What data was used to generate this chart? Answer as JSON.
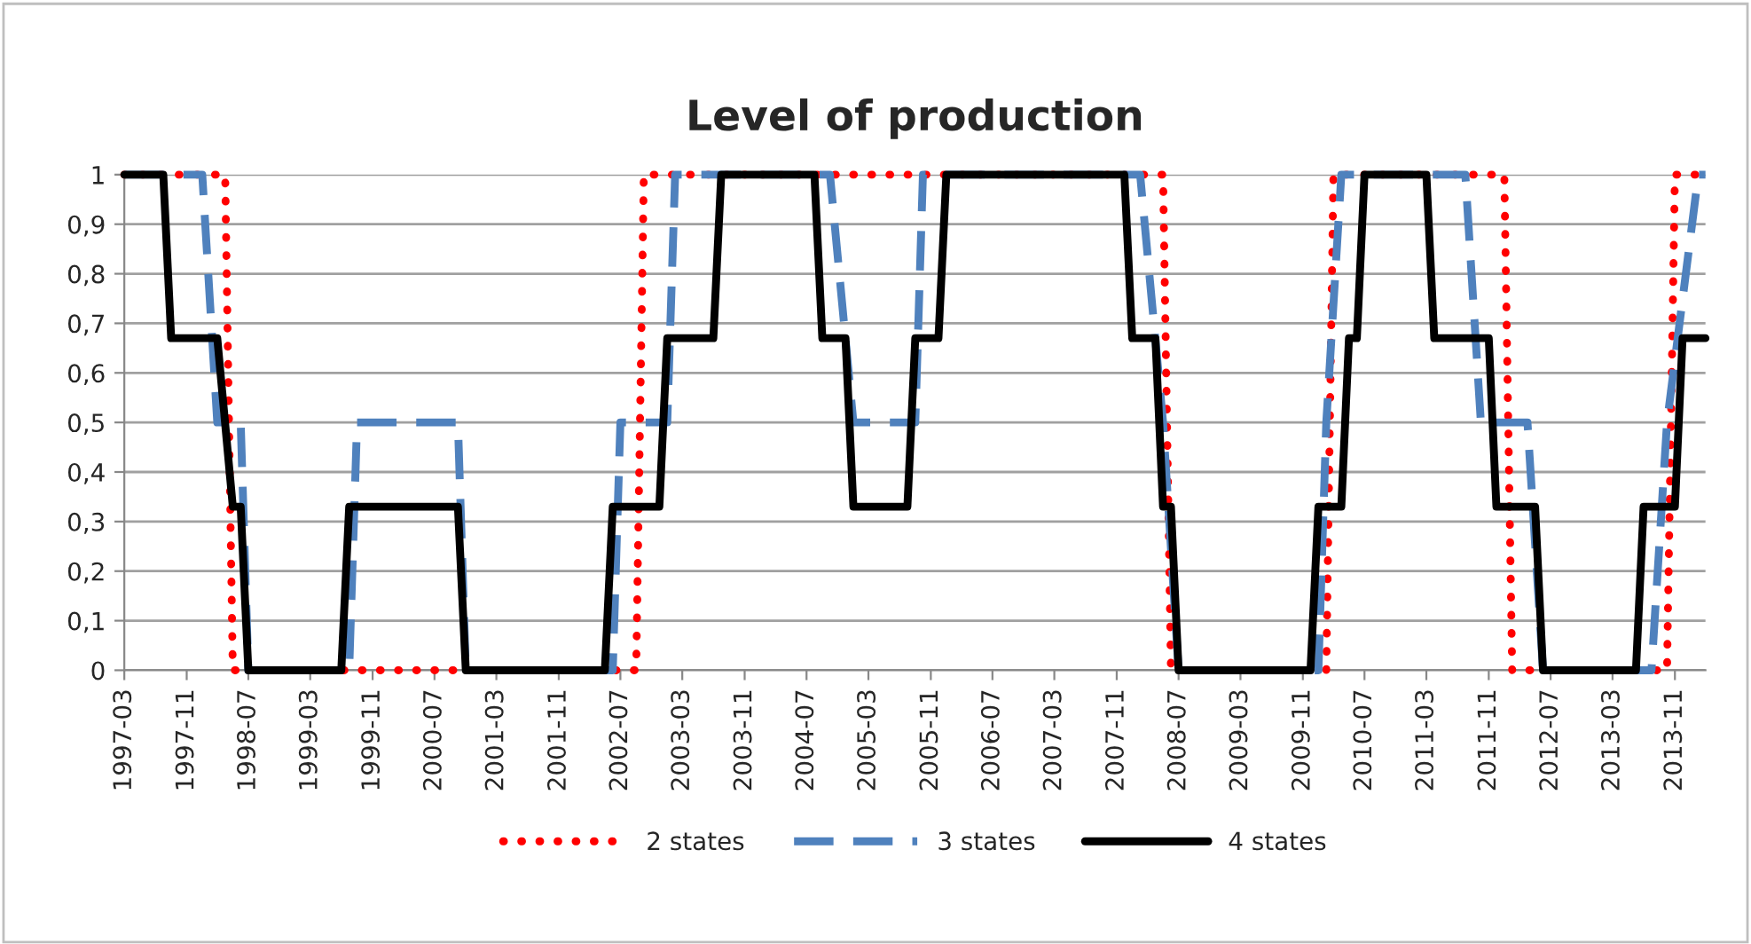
{
  "chart_data": {
    "type": "line",
    "title": "Level of production",
    "xlim": [
      "1997-03",
      "2014-03"
    ],
    "xticks": [
      "1997-03",
      "1997-11",
      "1998-07",
      "1999-03",
      "1999-11",
      "2000-07",
      "2001-03",
      "2001-11",
      "2002-07",
      "2003-03",
      "2003-11",
      "2004-07",
      "2005-03",
      "2005-11",
      "2006-07",
      "2007-03",
      "2007-11",
      "2008-07",
      "2009-03",
      "2009-11",
      "2010-07",
      "2011-03",
      "2011-11",
      "2012-07",
      "2013-03",
      "2013-11"
    ],
    "ylim": [
      0,
      1
    ],
    "yticks": [
      {
        "value": 0,
        "label": "0"
      },
      {
        "value": 0.1,
        "label": "0,1"
      },
      {
        "value": 0.2,
        "label": "0,2"
      },
      {
        "value": 0.3,
        "label": "0,3"
      },
      {
        "value": 0.4,
        "label": "0,4"
      },
      {
        "value": 0.5,
        "label": "0,5"
      },
      {
        "value": 0.6,
        "label": "0,6"
      },
      {
        "value": 0.7,
        "label": "0,7"
      },
      {
        "value": 0.8,
        "label": "0,8"
      },
      {
        "value": 0.9,
        "label": "0,9"
      },
      {
        "value": 1,
        "label": "1"
      }
    ],
    "grid": "y",
    "legend": "bottom",
    "marker": "none",
    "series": [
      {
        "name": "2 states",
        "color": "#ff0000",
        "line_style": "dotted",
        "x": [
          "1997-03",
          "1998-04",
          "1998-05",
          "2002-09",
          "2002-10",
          "2008-05",
          "2008-06",
          "2010-02",
          "2010-03",
          "2012-01",
          "2012-02",
          "2013-10",
          "2013-11",
          "2014-03"
        ],
        "values": [
          1,
          1,
          0,
          0,
          1,
          1,
          0,
          0,
          1,
          1,
          0,
          0,
          1,
          1
        ]
      },
      {
        "name": "3 states",
        "color": "#4f81bd",
        "line_style": "dashed",
        "x": [
          "1997-03",
          "1998-01",
          "1998-03",
          "1998-06",
          "1998-07",
          "1999-08",
          "1999-09",
          "2000-10",
          "2000-11",
          "2002-06",
          "2002-07",
          "2003-01",
          "2003-02",
          "2004-10",
          "2005-01",
          "2005-09",
          "2005-10",
          "2008-02",
          "2008-05",
          "2008-07",
          "2010-01",
          "2010-02",
          "2010-04",
          "2011-08",
          "2011-10",
          "2012-04",
          "2012-06",
          "2013-08",
          "2013-10",
          "2014-02",
          "2014-03"
        ],
        "values": [
          1,
          1,
          0.5,
          0.5,
          0,
          0,
          0.5,
          0.5,
          0,
          0,
          0.5,
          0.5,
          1,
          1,
          0.5,
          0.5,
          1,
          1,
          0.5,
          0,
          0,
          0.5,
          1,
          1,
          0.5,
          0.5,
          0,
          0,
          0.5,
          1,
          1
        ]
      },
      {
        "name": "4 states",
        "color": "#000000",
        "line_style": "solid",
        "x": [
          "1997-03",
          "1997-08",
          "1997-09",
          "1998-03",
          "1998-05",
          "1998-06",
          "1998-07",
          "1999-07",
          "1999-08",
          "2000-10",
          "2000-11",
          "2002-05",
          "2002-06",
          "2002-12",
          "2003-01",
          "2003-07",
          "2003-08",
          "2004-08",
          "2004-09",
          "2004-12",
          "2005-01",
          "2005-08",
          "2005-09",
          "2005-12",
          "2006-01",
          "2007-12",
          "2008-01",
          "2008-04",
          "2008-05",
          "2008-06",
          "2008-07",
          "2009-12",
          "2010-01",
          "2010-04",
          "2010-05",
          "2010-06",
          "2010-07",
          "2011-03",
          "2011-04",
          "2011-11",
          "2011-12",
          "2012-05",
          "2012-06",
          "2013-06",
          "2013-07",
          "2013-11",
          "2013-12",
          "2014-03"
        ],
        "values": [
          1,
          1,
          0.67,
          0.67,
          0.33,
          0.33,
          0,
          0,
          0.33,
          0.33,
          0,
          0,
          0.33,
          0.33,
          0.67,
          0.67,
          1,
          1,
          0.67,
          0.67,
          0.33,
          0.33,
          0.67,
          0.67,
          1,
          1,
          0.67,
          0.67,
          0.33,
          0.33,
          0,
          0,
          0.33,
          0.33,
          0.67,
          0.67,
          1,
          1,
          0.67,
          0.67,
          0.33,
          0.33,
          0,
          0,
          0.33,
          0.33,
          0.67,
          0.67
        ]
      }
    ]
  }
}
